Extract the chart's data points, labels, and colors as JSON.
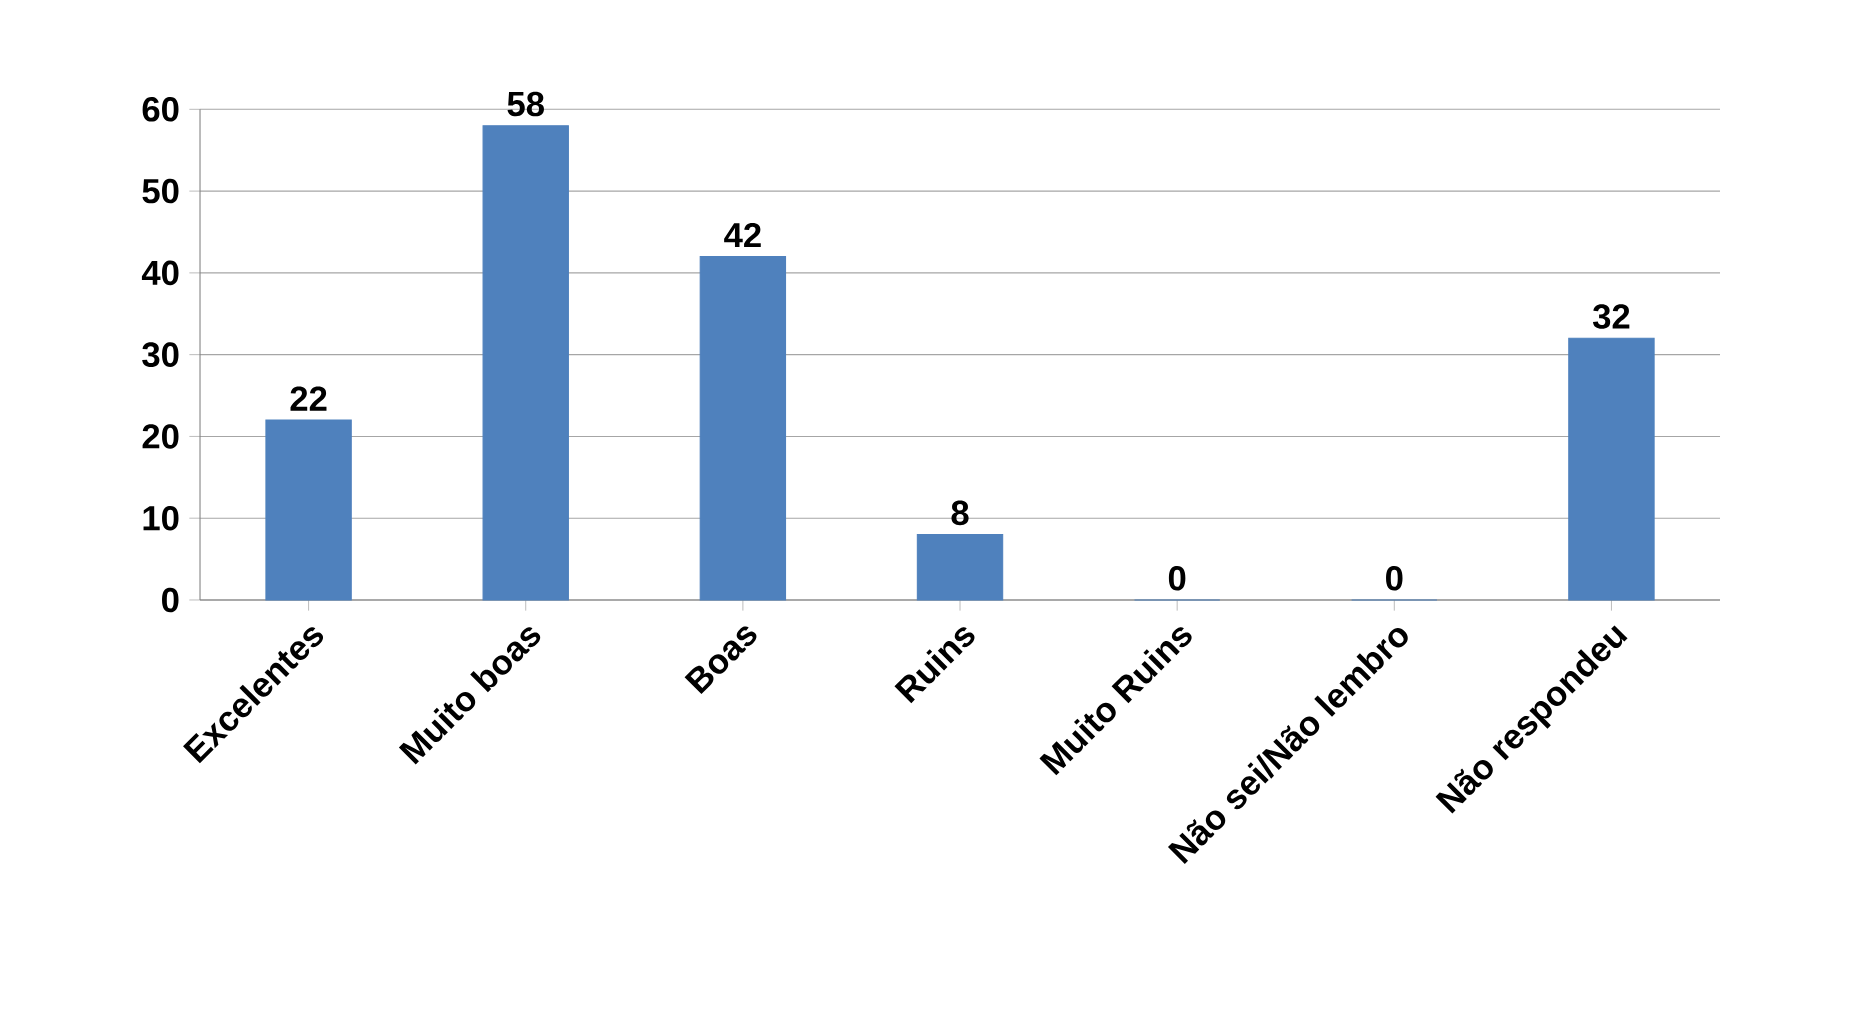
{
  "chart_data": {
    "type": "bar",
    "categories": [
      "Excelentes",
      "Muito boas",
      "Boas",
      "Ruins",
      "Muito Ruins",
      "Não sei/Não lembro",
      "Não respondeu"
    ],
    "values": [
      22,
      58,
      42,
      8,
      0,
      0,
      32
    ],
    "color": "#4f81bd",
    "ylim": [
      0,
      60
    ],
    "yticks": [
      0,
      10,
      20,
      30,
      40,
      50,
      60
    ],
    "grid": "y",
    "data_labels": true
  }
}
